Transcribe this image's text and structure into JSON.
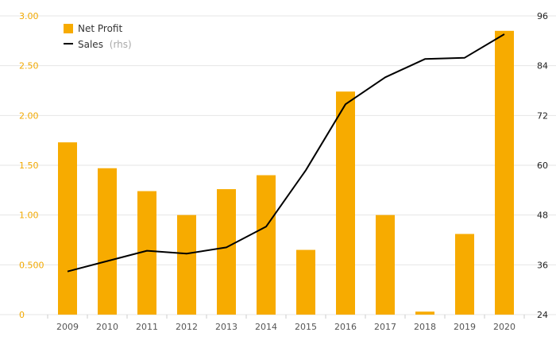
{
  "chart_data": {
    "type": "bar",
    "categories": [
      "2009",
      "2010",
      "2011",
      "2012",
      "2013",
      "2014",
      "2015",
      "2016",
      "2017",
      "2018",
      "2019",
      "2020"
    ],
    "series": [
      {
        "name": "Net Profit",
        "type": "bar",
        "axis": "left",
        "values": [
          1.73,
          1.47,
          1.24,
          1.0,
          1.26,
          1.4,
          0.65,
          2.24,
          1.0,
          0.03,
          0.81,
          2.85
        ]
      },
      {
        "name": "Sales",
        "name_suffix": "(rhs)",
        "type": "line",
        "axis": "right",
        "values": [
          34.4,
          36.9,
          39.4,
          38.7,
          40.2,
          45.2,
          58.8,
          74.7,
          81.2,
          85.6,
          85.9,
          91.6
        ]
      }
    ],
    "y_left": {
      "ylim": [
        0,
        3.0
      ],
      "ticks": [
        "0",
        "0.500",
        "1.00",
        "1.50",
        "2.00",
        "2.50",
        "3.00"
      ]
    },
    "y_right": {
      "ylim": [
        24,
        96
      ],
      "ticks": [
        "24",
        "36",
        "48",
        "60",
        "72",
        "84",
        "96"
      ]
    },
    "grid": true,
    "legend": "top-left",
    "colors": {
      "bar": "#f7ab00",
      "line": "#000000",
      "left_axis_text": "#f2a900",
      "grid": "#e6e6e6"
    }
  }
}
